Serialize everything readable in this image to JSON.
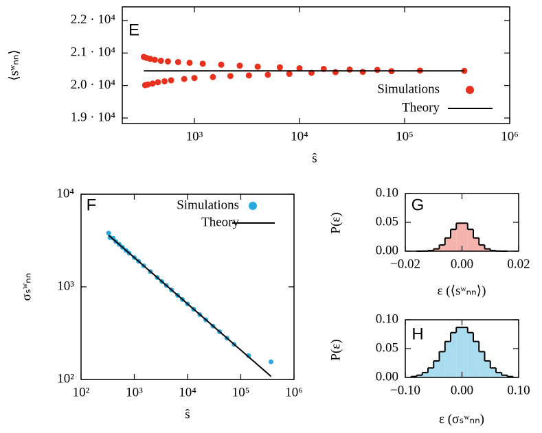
{
  "chart_data": [
    {
      "type": "scatter",
      "panel_label": "E",
      "x_label": "ŝ",
      "y_label": "⟨sʷₙₙ⟩",
      "xscale": "log",
      "xlim": [
        206,
        1000000
      ],
      "ylim": [
        18830,
        22420
      ],
      "xticks": [
        {
          "value": 1000,
          "label": "10³"
        },
        {
          "value": 10000,
          "label": "10⁴"
        },
        {
          "value": 100000,
          "label": "10⁵"
        },
        {
          "value": 1000000,
          "label": "10⁶"
        }
      ],
      "yticks": [
        {
          "value": 19000,
          "label": "1.9 · 10⁴"
        },
        {
          "value": 20000,
          "label": "2.0 · 10⁴"
        },
        {
          "value": 21000,
          "label": "2.1 · 10⁴"
        },
        {
          "value": 22000,
          "label": "2.2 · 10⁴"
        }
      ],
      "series": [
        {
          "name": "Simulations",
          "color": "#e8301c",
          "mark": "point",
          "x": [
            330,
            340,
            350,
            360,
            380,
            400,
            420,
            450,
            480,
            520,
            560,
            600,
            700,
            800,
            900,
            1000,
            1200,
            1500,
            1800,
            2200,
            2700,
            3300,
            4000,
            5000,
            6500,
            8000,
            10000,
            13000,
            17000,
            22000,
            30000,
            40000,
            55000,
            75000,
            140000,
            370000
          ],
          "values": [
            20880,
            20010,
            20850,
            20030,
            20820,
            20060,
            20790,
            20100,
            20760,
            20130,
            20740,
            20160,
            20720,
            20200,
            20700,
            20230,
            20670,
            20260,
            20640,
            20290,
            20610,
            20310,
            20580,
            20330,
            20560,
            20360,
            20530,
            20390,
            20510,
            20410,
            20490,
            20420,
            20480,
            20440,
            20460,
            20450
          ]
        },
        {
          "name": "Theory",
          "color": "#000000",
          "mark": "line",
          "x": [
            330,
            370000
          ],
          "values": [
            20450,
            20450
          ]
        }
      ]
    },
    {
      "type": "scatter",
      "panel_label": "F",
      "x_label": "ŝ",
      "y_label": "σₛʷₙₙ",
      "xscale": "log",
      "yscale": "log",
      "xlim": [
        100,
        1000000
      ],
      "ylim": [
        100,
        10000
      ],
      "xticks": [
        {
          "value": 100,
          "label": "10²"
        },
        {
          "value": 1000,
          "label": "10³"
        },
        {
          "value": 10000,
          "label": "10⁴"
        },
        {
          "value": 100000,
          "label": "10⁵"
        },
        {
          "value": 1000000,
          "label": "10⁶"
        }
      ],
      "yticks": [
        {
          "value": 100,
          "label": "10²"
        },
        {
          "value": 1000,
          "label": "10³"
        },
        {
          "value": 10000,
          "label": "10⁴"
        }
      ],
      "series": [
        {
          "name": "Simulations",
          "color": "#27a9df",
          "mark": "point",
          "x": [
            330,
            350,
            400,
            450,
            520,
            600,
            700,
            800,
            1000,
            1200,
            1500,
            2000,
            2700,
            3300,
            4000,
            5000,
            6500,
            8000,
            10000,
            13000,
            17000,
            22000,
            30000,
            40000,
            55000,
            75000,
            140000,
            370000
          ],
          "values": [
            3800,
            3400,
            3350,
            3080,
            2870,
            2670,
            2470,
            2310,
            2070,
            1890,
            1690,
            1460,
            1260,
            1140,
            1035,
            925,
            810,
            731,
            654,
            573,
            501,
            441,
            377,
            327,
            279,
            239,
            181,
            155
          ]
        },
        {
          "name": "Theory",
          "color": "#000000",
          "mark": "line",
          "x": [
            330,
            370000
          ],
          "values": [
            3600,
            108
          ]
        }
      ]
    },
    {
      "type": "histogram",
      "panel_label": "G",
      "x_label": "ε (⟨sʷₙₙ⟩)",
      "y_label": "P(ε)",
      "color": "#f4b4ad",
      "xlim": [
        -0.02,
        0.02
      ],
      "ylim": [
        0,
        0.1
      ],
      "xticks": [
        {
          "value": -0.02,
          "label": "−0.02"
        },
        {
          "value": 0,
          "label": "0.00"
        },
        {
          "value": 0.02,
          "label": "0.02"
        }
      ],
      "yticks": [
        {
          "value": 0,
          "label": "0.00"
        },
        {
          "value": 0.05,
          "label": "0.05"
        },
        {
          "value": 0.1,
          "label": "0.10"
        }
      ],
      "bins": [
        -0.016,
        -0.014,
        -0.012,
        -0.01,
        -0.008,
        -0.006,
        -0.004,
        -0.002,
        0,
        0.002,
        0.004,
        0.006,
        0.008,
        0.01,
        0.012,
        0.014,
        0.016
      ],
      "values": [
        0,
        0.0002,
        0.0011,
        0.004,
        0.0108,
        0.0229,
        0.0378,
        0.0485,
        0.0485,
        0.0378,
        0.0229,
        0.0108,
        0.004,
        0.0011,
        0.0002,
        0
      ]
    },
    {
      "type": "histogram",
      "panel_label": "H",
      "x_label": "ε (σₛʷₙₙ)",
      "y_label": "P(ε)",
      "color": "#a9dcef",
      "xlim": [
        -0.1,
        0.1
      ],
      "ylim": [
        0,
        0.1
      ],
      "xticks": [
        {
          "value": -0.1,
          "label": "−0.10"
        },
        {
          "value": 0,
          "label": "0.00"
        },
        {
          "value": 0.1,
          "label": "0.10"
        }
      ],
      "yticks": [
        {
          "value": 0,
          "label": "0.00"
        },
        {
          "value": 0.05,
          "label": "0.05"
        },
        {
          "value": 0.1,
          "label": "0.10"
        }
      ],
      "bins": [
        -0.09,
        -0.08,
        -0.07,
        -0.06,
        -0.05,
        -0.04,
        -0.03,
        -0.02,
        -0.01,
        0,
        0.01,
        0.02,
        0.03,
        0.04,
        0.05,
        0.06,
        0.07,
        0.08,
        0.09
      ],
      "values": [
        0.0016,
        0.0039,
        0.0084,
        0.0164,
        0.0286,
        0.0447,
        0.0623,
        0.0777,
        0.0868,
        0.0868,
        0.0777,
        0.0623,
        0.0447,
        0.0286,
        0.0164,
        0.0084,
        0.0039,
        0.0016
      ]
    }
  ]
}
